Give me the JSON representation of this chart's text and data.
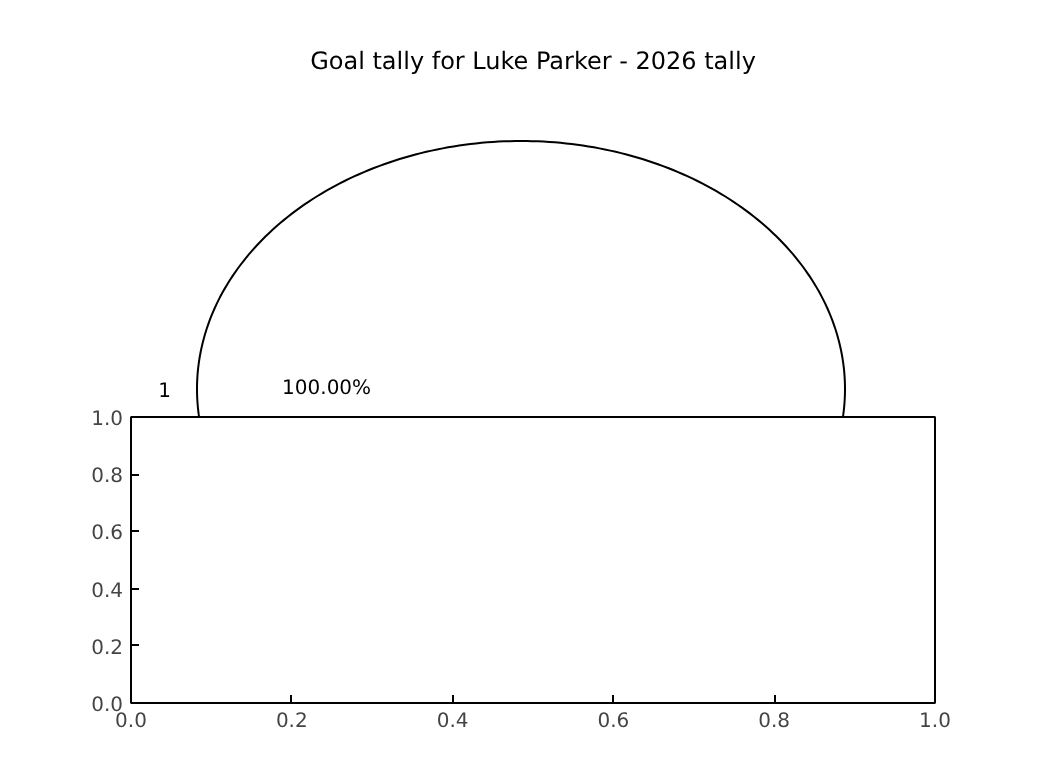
{
  "chart_data": [
    {
      "type": "pie",
      "title": "Goal tally for Luke Parker - 2026 tally",
      "categories": [
        "1"
      ],
      "values": [
        100
      ],
      "colors": [
        "#ffffff"
      ],
      "value_labels": [
        "100.00%"
      ]
    },
    {
      "type": "scatter",
      "xlim": [
        0,
        1
      ],
      "ylim": [
        0,
        1
      ],
      "xticks": [
        {
          "value": 0,
          "label": "0.0"
        },
        {
          "value": 0.2,
          "label": "0.2"
        },
        {
          "value": 0.4,
          "label": "0.4"
        },
        {
          "value": 0.6,
          "label": "0.6"
        },
        {
          "value": 0.8,
          "label": "0.8"
        },
        {
          "value": 1,
          "label": "1.0"
        }
      ],
      "yticks": [
        {
          "value": 0,
          "label": "0.0"
        },
        {
          "value": 0.2,
          "label": "0.2"
        },
        {
          "value": 0.4,
          "label": "0.4"
        },
        {
          "value": 0.6,
          "label": "0.6"
        },
        {
          "value": 0.8,
          "label": "0.8"
        },
        {
          "value": 1,
          "label": "1.0"
        }
      ]
    }
  ]
}
